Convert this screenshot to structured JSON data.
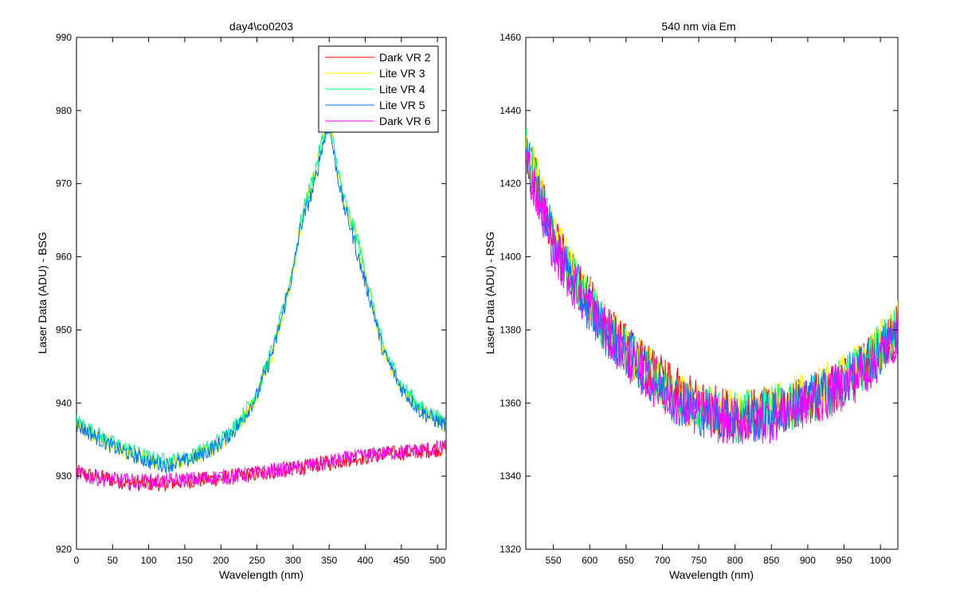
{
  "chart_data": [
    {
      "type": "line",
      "title": "day4\\co0203",
      "xlabel": "Wavelength (nm)",
      "ylabel": "Laser Data (ADU) - BSG",
      "xlim": [
        0,
        512
      ],
      "ylim": [
        920,
        990
      ],
      "xticks": [
        0,
        50,
        100,
        150,
        200,
        250,
        300,
        350,
        400,
        450,
        500
      ],
      "yticks": [
        920,
        930,
        940,
        950,
        960,
        970,
        980,
        990
      ],
      "grid": false,
      "legend_position": "top-right",
      "x": [
        0,
        25,
        50,
        75,
        100,
        125,
        150,
        175,
        200,
        225,
        250,
        275,
        300,
        310,
        320,
        330,
        340,
        350,
        360,
        370,
        380,
        390,
        410,
        425,
        450,
        475,
        500,
        512
      ],
      "series": [
        {
          "name": "Dark VR 2",
          "color": "#ff0000",
          "values": [
            930.5,
            930,
            929.5,
            929,
            929,
            929,
            929.3,
            929.5,
            929.7,
            930,
            930.3,
            930.7,
            931,
            931.2,
            931.3,
            931.5,
            931.7,
            931.8,
            932,
            932.2,
            932.4,
            932.5,
            932.8,
            933,
            933.2,
            933.4,
            933.7,
            933.8
          ]
        },
        {
          "name": "Lite VR 3",
          "color": "#ffff00",
          "values": [
            937,
            935.5,
            934,
            933,
            932,
            931.5,
            932,
            933,
            934.5,
            937,
            941,
            948,
            958,
            964,
            968,
            971,
            976,
            979,
            973,
            968,
            965,
            962,
            953,
            947,
            942,
            939,
            937.5,
            937
          ]
        },
        {
          "name": "Lite VR 4",
          "color": "#00ff7f",
          "values": [
            937.5,
            936,
            934.5,
            933.5,
            932.5,
            932,
            932.5,
            933.5,
            935,
            937.5,
            941.5,
            948.5,
            958.5,
            964.5,
            968.5,
            971.5,
            976,
            978.5,
            973,
            968,
            965,
            962,
            953.5,
            947.5,
            942.5,
            939.5,
            938,
            937.5
          ]
        },
        {
          "name": "Lite VR 5",
          "color": "#0072ff",
          "values": [
            937,
            935.5,
            934,
            933,
            932,
            931.5,
            932,
            933,
            934.5,
            937,
            941,
            948,
            958,
            964,
            967,
            970,
            975,
            978,
            972,
            967,
            964,
            960,
            953,
            947,
            942,
            939,
            937.5,
            937
          ]
        },
        {
          "name": "Dark VR 6",
          "color": "#ff00ff",
          "values": [
            930.3,
            929.8,
            929.5,
            929.3,
            929.3,
            929.3,
            929.5,
            929.7,
            929.9,
            930.1,
            930.4,
            930.8,
            931,
            931.2,
            931.3,
            931.5,
            931.7,
            931.9,
            932.1,
            932.3,
            932.5,
            932.6,
            932.9,
            933.1,
            933.3,
            933.5,
            933.8,
            933.9
          ]
        }
      ]
    },
    {
      "type": "line",
      "title": "540 nm via Em",
      "xlabel": "Wavelength (nm)",
      "ylabel": "Laser Data (ADU) - RSG",
      "xlim": [
        512,
        1024
      ],
      "ylim": [
        1320,
        1460
      ],
      "xticks": [
        550,
        600,
        650,
        700,
        750,
        800,
        850,
        900,
        950,
        1000
      ],
      "yticks": [
        1320,
        1340,
        1360,
        1380,
        1400,
        1420,
        1440,
        1460
      ],
      "grid": false,
      "legend_position": "none",
      "x": [
        512,
        530,
        550,
        575,
        600,
        625,
        650,
        675,
        700,
        725,
        750,
        775,
        800,
        825,
        850,
        875,
        900,
        925,
        950,
        975,
        1000,
        1024
      ],
      "series": [
        {
          "color": "#ff0000",
          "values": [
            1428,
            1418,
            1405,
            1395,
            1388,
            1380,
            1375,
            1370,
            1366,
            1362,
            1360,
            1358,
            1357,
            1357,
            1358,
            1359,
            1361,
            1363,
            1366,
            1370,
            1375,
            1380
          ]
        },
        {
          "color": "#ffff00",
          "values": [
            1430,
            1419,
            1406,
            1396,
            1388,
            1381,
            1375,
            1370,
            1365,
            1361,
            1359,
            1358,
            1357,
            1357,
            1358,
            1360,
            1362,
            1364,
            1367,
            1371,
            1376,
            1382
          ]
        },
        {
          "color": "#00ff7f",
          "values": [
            1429,
            1418,
            1405,
            1394,
            1387,
            1380,
            1374,
            1369,
            1365,
            1361,
            1359,
            1357,
            1356,
            1357,
            1358,
            1359,
            1361,
            1363,
            1366,
            1370,
            1375,
            1381
          ]
        },
        {
          "color": "#0072ff",
          "values": [
            1427,
            1417,
            1404,
            1394,
            1386,
            1379,
            1374,
            1369,
            1364,
            1360,
            1358,
            1357,
            1356,
            1356,
            1357,
            1359,
            1361,
            1363,
            1366,
            1369,
            1374,
            1380
          ]
        },
        {
          "color": "#ff00ff",
          "values": [
            1426,
            1416,
            1403,
            1393,
            1386,
            1379,
            1373,
            1368,
            1364,
            1360,
            1357,
            1356,
            1355,
            1355,
            1356,
            1358,
            1360,
            1362,
            1365,
            1368,
            1373,
            1379
          ]
        }
      ]
    }
  ]
}
